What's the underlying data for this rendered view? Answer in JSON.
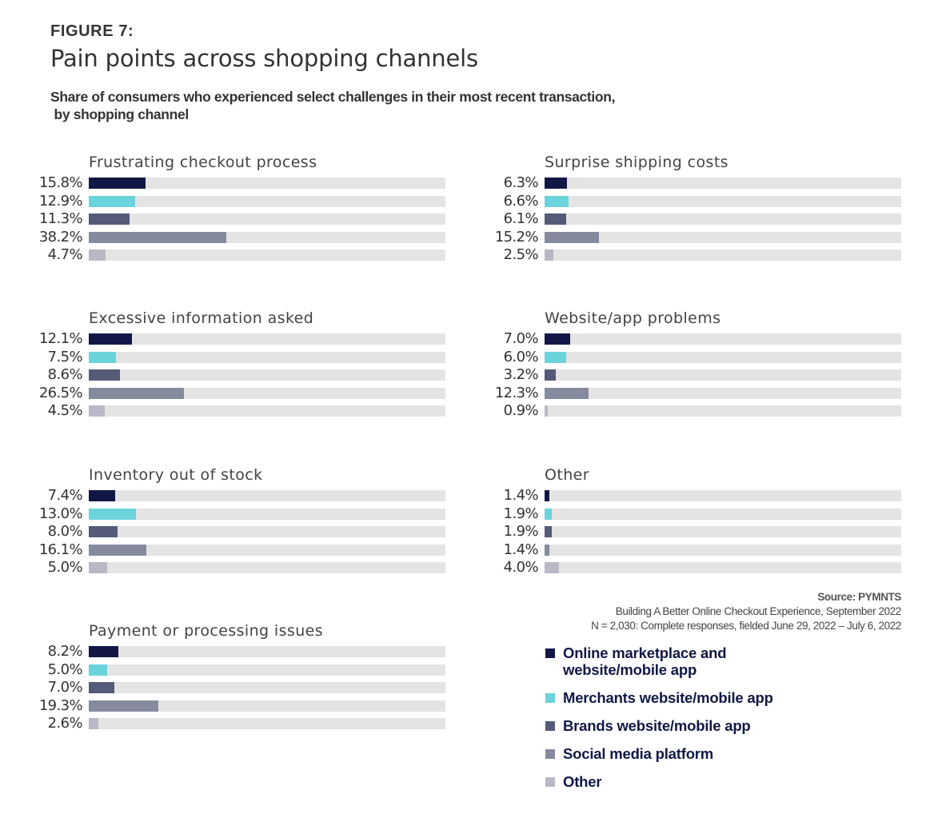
{
  "header": {
    "figure_label": "FIGURE 7:",
    "title": "Pain points across shopping channels",
    "subtitle": "Share of consumers who experienced select challenges in their most recent transaction,\n by shopping channel"
  },
  "colors": {
    "online_marketplace": "#111846",
    "merchants": "#6ad3dc",
    "brands": "#545a78",
    "social_media": "#868a9e",
    "other": "#b8b9c4",
    "track": "#e4e4e4"
  },
  "source": {
    "head": "Source: PYMNTS",
    "line1": "Building A Better Online Checkout Experience, September 2022",
    "line2": "N = 2,030: Complete responses, fielded June 29, 2022 – July 6, 2022"
  },
  "legend": [
    {
      "label": "Online marketplace and website/mobile app",
      "line1": "Online marketplace and",
      "line2": "website/mobile app",
      "color": "#111846"
    },
    {
      "label": "Merchants website/mobile app",
      "color": "#6ad3dc"
    },
    {
      "label": "Brands website/mobile app",
      "color": "#545a78"
    },
    {
      "label": "Social media platform",
      "color": "#868a9e"
    },
    {
      "label": "Other",
      "color": "#b8b9c4"
    }
  ],
  "groups": [
    {
      "title": "Frustrating checkout process",
      "labels": [
        "15.8%",
        "12.9%",
        "11.3%",
        "38.2%",
        "4.7%"
      ]
    },
    {
      "title": "Surprise shipping costs",
      "labels": [
        "6.3%",
        "6.6%",
        "6.1%",
        "15.2%",
        "2.5%"
      ]
    },
    {
      "title": "Excessive information asked",
      "labels": [
        "12.1%",
        "7.5%",
        "8.6%",
        "26.5%",
        "4.5%"
      ]
    },
    {
      "title": "Website/app problems",
      "labels": [
        "7.0%",
        "6.0%",
        "3.2%",
        "12.3%",
        "0.9%"
      ]
    },
    {
      "title": "Inventory out of stock",
      "labels": [
        "7.4%",
        "13.0%",
        "8.0%",
        "16.1%",
        "5.0%"
      ]
    },
    {
      "title": "Other",
      "labels": [
        "1.4%",
        "1.9%",
        "1.9%",
        "1.4%",
        "4.0%"
      ]
    },
    {
      "title": "Payment or processing issues",
      "labels": [
        "8.2%",
        "5.0%",
        "7.0%",
        "19.3%",
        "2.6%"
      ]
    }
  ],
  "chart_data": {
    "type": "bar",
    "orientation": "horizontal",
    "title": "Pain points across shopping channels",
    "subtitle": "Share of consumers who experienced select challenges in their most recent transaction, by shopping channel",
    "xlabel": "",
    "ylabel": "",
    "xlim": [
      0,
      100
    ],
    "grid": false,
    "legend_position": "bottom-right",
    "categories": [
      "Frustrating checkout process",
      "Surprise shipping costs",
      "Excessive information asked",
      "Website/app problems",
      "Inventory out of stock",
      "Other",
      "Payment or processing issues"
    ],
    "series": [
      {
        "name": "Online marketplace and website/mobile app",
        "color": "#111846",
        "values": [
          15.8,
          6.3,
          12.1,
          7.0,
          7.4,
          1.4,
          8.2
        ]
      },
      {
        "name": "Merchants website/mobile app",
        "color": "#6ad3dc",
        "values": [
          12.9,
          6.6,
          7.5,
          6.0,
          13.0,
          1.9,
          5.0
        ]
      },
      {
        "name": "Brands website/mobile app",
        "color": "#545a78",
        "values": [
          11.3,
          6.1,
          8.6,
          3.2,
          8.0,
          1.9,
          7.0
        ]
      },
      {
        "name": "Social media platform",
        "color": "#868a9e",
        "values": [
          38.2,
          15.2,
          26.5,
          12.3,
          16.1,
          1.4,
          19.3
        ]
      },
      {
        "name": "Other",
        "color": "#b8b9c4",
        "values": [
          4.7,
          2.5,
          4.5,
          0.9,
          5.0,
          4.0,
          2.6
        ]
      }
    ],
    "annotations": [
      "Source: PYMNTS",
      "Building A Better Online Checkout Experience, September 2022",
      "N = 2,030: Complete responses, fielded June 29, 2022 – July 6, 2022"
    ]
  }
}
